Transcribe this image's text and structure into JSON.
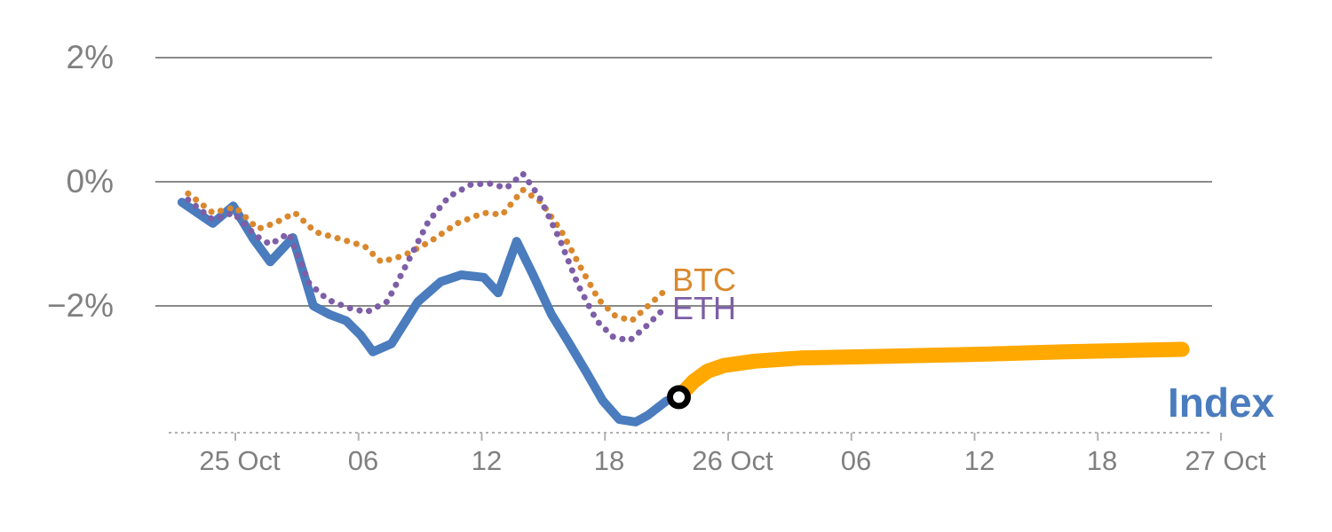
{
  "colors": {
    "index": "#4a7cbe",
    "forecast": "#ffa800",
    "btc": "#d9882d",
    "eth": "#7d5ea7",
    "gridline": "#8a8a8a",
    "axis_line": "#b0b0b0",
    "axis_text": "#808080",
    "marker_stroke": "#000000",
    "marker_fill": "#ffffff"
  },
  "chart_data": {
    "type": "line",
    "title": "",
    "grid": "horizontal",
    "legend_position": "inline-right",
    "x_axis": {
      "unit": "hours from 25 Oct 00:00",
      "tick_hours": [
        0,
        6,
        12,
        18,
        24,
        30,
        36,
        42,
        48
      ],
      "tick_labels": [
        "25 Oct",
        "06",
        "12",
        "18",
        "26 Oct",
        "06",
        "12",
        "18",
        "27 Oct"
      ],
      "range_hours": [
        -3.4,
        48.6
      ]
    },
    "y_axis": {
      "unit": "percent change",
      "tick_values": [
        2,
        0,
        -2
      ],
      "tick_labels": [
        "2%",
        "0%",
        "−2%"
      ],
      "range": [
        -4.1,
        2.9
      ]
    },
    "series": [
      {
        "name": "Index",
        "label": "Index",
        "color": "#4a7cbe",
        "style": "solid",
        "stroke_width": 10,
        "points": [
          [
            -2.6,
            -0.33
          ],
          [
            -1.1,
            -0.67
          ],
          [
            -0.1,
            -0.39
          ],
          [
            0.9,
            -0.93
          ],
          [
            1.7,
            -1.29
          ],
          [
            2.8,
            -0.9
          ],
          [
            3.8,
            -2.0
          ],
          [
            4.6,
            -2.14
          ],
          [
            5.4,
            -2.24
          ],
          [
            6.1,
            -2.47
          ],
          [
            6.7,
            -2.74
          ],
          [
            7.6,
            -2.61
          ],
          [
            8.9,
            -1.93
          ],
          [
            10.0,
            -1.61
          ],
          [
            11.0,
            -1.5
          ],
          [
            12.1,
            -1.54
          ],
          [
            12.8,
            -1.79
          ],
          [
            13.7,
            -0.96
          ],
          [
            14.5,
            -1.5
          ],
          [
            15.4,
            -2.14
          ],
          [
            16.2,
            -2.57
          ],
          [
            17.1,
            -3.07
          ],
          [
            17.9,
            -3.53
          ],
          [
            18.7,
            -3.83
          ],
          [
            19.5,
            -3.87
          ],
          [
            20.1,
            -3.76
          ],
          [
            21.0,
            -3.53
          ],
          [
            21.6,
            -3.47
          ]
        ]
      },
      {
        "name": "Index forecast",
        "label": "",
        "color": "#ffa800",
        "style": "solid",
        "stroke_width": 17,
        "points": [
          [
            21.6,
            -3.47
          ],
          [
            22.3,
            -3.22
          ],
          [
            23.0,
            -3.05
          ],
          [
            23.8,
            -2.96
          ],
          [
            25.3,
            -2.89
          ],
          [
            27.5,
            -2.84
          ],
          [
            31.8,
            -2.81
          ],
          [
            36.1,
            -2.78
          ],
          [
            40.4,
            -2.74
          ],
          [
            46.1,
            -2.7
          ]
        ]
      },
      {
        "name": "BTC",
        "label": "BTC",
        "color": "#d9882d",
        "style": "dotted",
        "stroke_width": 7,
        "points": [
          [
            -2.3,
            -0.19
          ],
          [
            -1.1,
            -0.5
          ],
          [
            0.0,
            -0.41
          ],
          [
            1.1,
            -0.76
          ],
          [
            1.9,
            -0.67
          ],
          [
            2.9,
            -0.5
          ],
          [
            3.9,
            -0.81
          ],
          [
            5.2,
            -0.93
          ],
          [
            6.3,
            -1.04
          ],
          [
            7.1,
            -1.29
          ],
          [
            8.2,
            -1.19
          ],
          [
            9.5,
            -0.96
          ],
          [
            10.8,
            -0.67
          ],
          [
            12.1,
            -0.5
          ],
          [
            13.0,
            -0.53
          ],
          [
            14.0,
            -0.13
          ],
          [
            14.9,
            -0.33
          ],
          [
            15.9,
            -0.81
          ],
          [
            16.9,
            -1.43
          ],
          [
            17.7,
            -1.9
          ],
          [
            18.5,
            -2.16
          ],
          [
            19.3,
            -2.24
          ],
          [
            20.1,
            -2.0
          ],
          [
            20.8,
            -1.79
          ]
        ]
      },
      {
        "name": "ETH",
        "label": "ETH",
        "color": "#7d5ea7",
        "style": "dotted",
        "stroke_width": 7,
        "points": [
          [
            -2.3,
            -0.29
          ],
          [
            -1.1,
            -0.61
          ],
          [
            -0.1,
            -0.5
          ],
          [
            1.0,
            -0.87
          ],
          [
            1.7,
            -1.01
          ],
          [
            2.6,
            -0.83
          ],
          [
            3.6,
            -1.64
          ],
          [
            4.5,
            -1.9
          ],
          [
            5.5,
            -2.03
          ],
          [
            6.4,
            -2.1
          ],
          [
            7.4,
            -1.93
          ],
          [
            8.4,
            -1.29
          ],
          [
            9.4,
            -0.64
          ],
          [
            10.4,
            -0.24
          ],
          [
            11.5,
            -0.04
          ],
          [
            12.4,
            -0.03
          ],
          [
            13.2,
            -0.1
          ],
          [
            14.0,
            0.13
          ],
          [
            14.8,
            -0.24
          ],
          [
            15.8,
            -0.93
          ],
          [
            16.7,
            -1.67
          ],
          [
            17.6,
            -2.24
          ],
          [
            18.4,
            -2.5
          ],
          [
            19.2,
            -2.56
          ],
          [
            20.0,
            -2.33
          ],
          [
            20.8,
            -2.07
          ]
        ]
      }
    ],
    "marker": {
      "series": "Index forecast",
      "hour": 21.6,
      "value": -3.47,
      "shape": "open-circle",
      "stroke": "#000000",
      "fill": "#ffffff"
    }
  }
}
